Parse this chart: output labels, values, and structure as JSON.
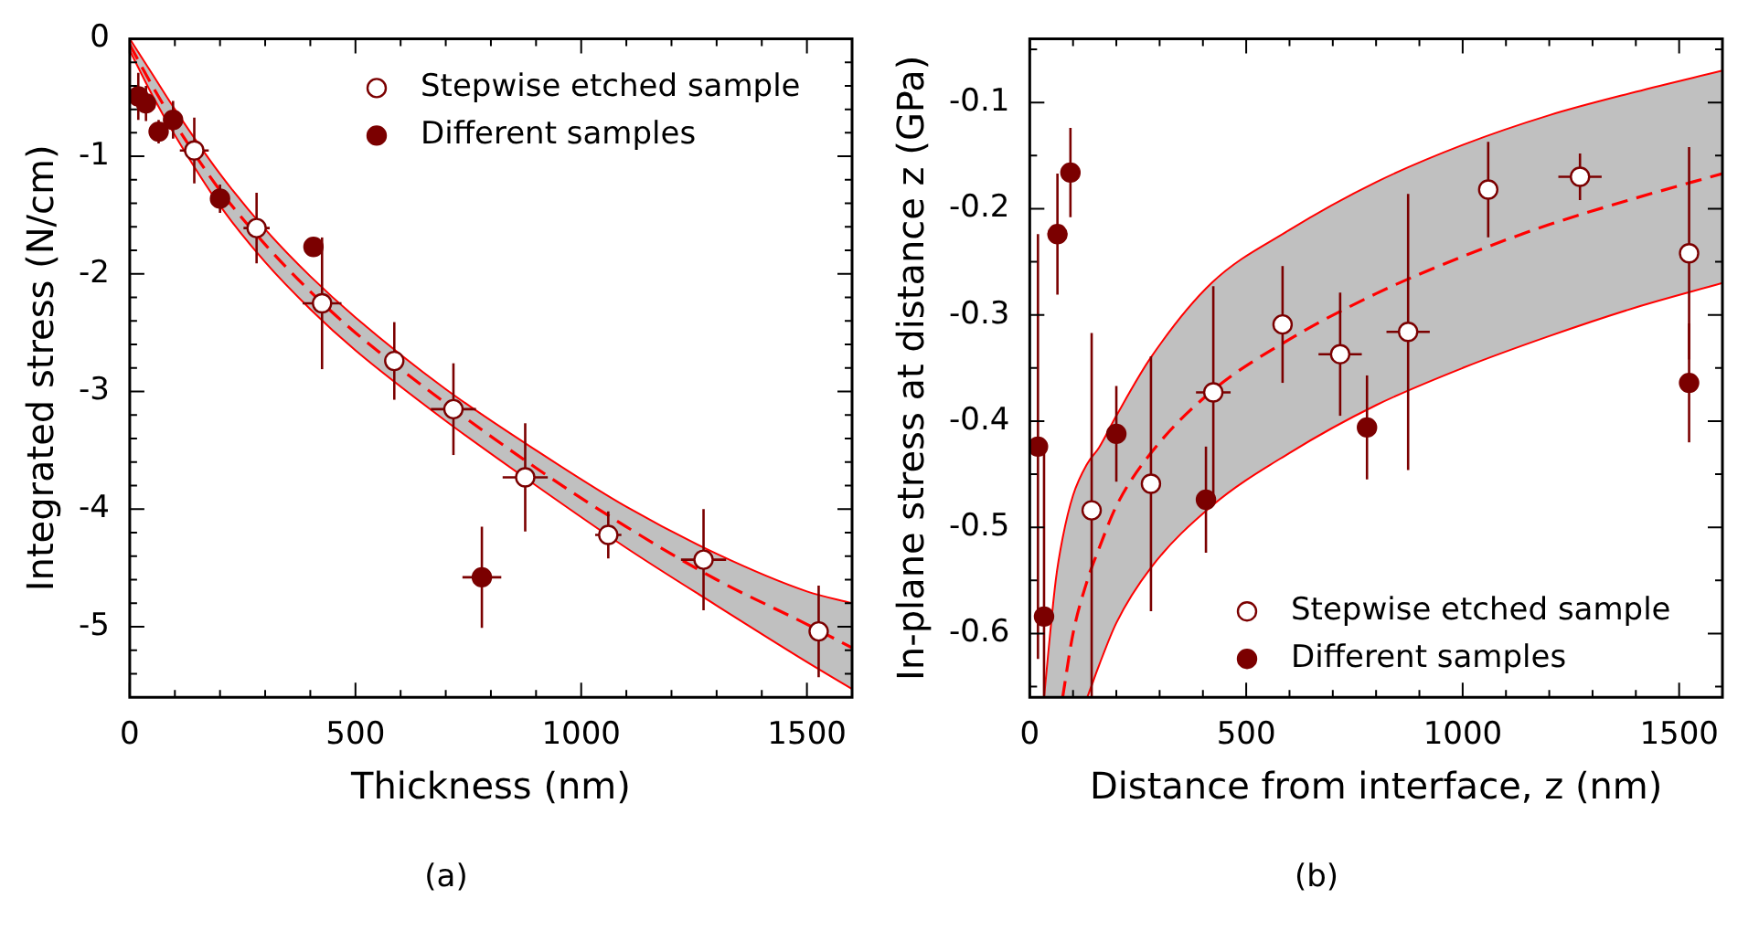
{
  "chart_data": [
    {
      "type": "scatter",
      "xlabel": "Thickness (nm)",
      "ylabel": "Integrated stress (N/cm)",
      "annotations": [
        "(a)"
      ],
      "legend": "top right",
      "marker": "circle",
      "xlim": [
        0,
        1600
      ],
      "xticks": [
        0,
        {
          "value": 100,
          "label": null
        },
        {
          "value": 200,
          "label": null
        },
        {
          "value": 300,
          "label": null
        },
        {
          "value": 400,
          "label": null
        },
        500,
        {
          "value": 600,
          "label": null
        },
        {
          "value": 700,
          "label": null
        },
        {
          "value": 800,
          "label": null
        },
        {
          "value": 900,
          "label": null
        },
        1000,
        {
          "value": 1100,
          "label": null
        },
        {
          "value": 1200,
          "label": null
        },
        {
          "value": 1300,
          "label": null
        },
        {
          "value": 1400,
          "label": null
        },
        1500
      ],
      "ylim": [
        -5.6,
        0
      ],
      "yticks": [
        0,
        {
          "value": -0.2,
          "label": null
        },
        {
          "value": -0.4,
          "label": null
        },
        {
          "value": -0.6,
          "label": null
        },
        {
          "value": -0.8,
          "label": null
        },
        -1,
        {
          "value": -1.2,
          "label": null
        },
        {
          "value": -1.4,
          "label": null
        },
        {
          "value": -1.6,
          "label": null
        },
        {
          "value": -1.8,
          "label": null
        },
        -2,
        {
          "value": -2.2,
          "label": null
        },
        {
          "value": -2.4,
          "label": null
        },
        {
          "value": -2.6,
          "label": null
        },
        {
          "value": -2.8,
          "label": null
        },
        -3,
        {
          "value": -3.2,
          "label": null
        },
        {
          "value": -3.4,
          "label": null
        },
        {
          "value": -3.6,
          "label": null
        },
        {
          "value": -3.8,
          "label": null
        },
        -4,
        {
          "value": -4.2,
          "label": null
        },
        {
          "value": -4.4,
          "label": null
        },
        {
          "value": -4.6,
          "label": null
        },
        {
          "value": -4.8,
          "label": null
        },
        -5,
        {
          "value": -5.2,
          "label": null
        },
        {
          "value": -5.4,
          "label": null
        }
      ],
      "series": [
        {
          "type": "line",
          "color": "#ff0000",
          "line_style": "dashed",
          "marker": "none",
          "x": [
            0,
            50,
            100,
            200,
            300,
            400,
            500,
            700,
            900,
            1100,
            1300,
            1500,
            1600
          ],
          "values": [
            -0.05,
            -0.4,
            -0.72,
            -1.29,
            -1.75,
            -2.15,
            -2.5,
            -3.1,
            -3.65,
            -4.15,
            -4.6,
            -4.98,
            -5.18
          ],
          "upper": [
            0,
            -0.3,
            -0.6,
            -1.15,
            -1.62,
            -2.02,
            -2.37,
            -2.98,
            -3.5,
            -3.98,
            -4.38,
            -4.7,
            -4.8
          ],
          "lower": [
            -0.1,
            -0.48,
            -0.82,
            -1.42,
            -1.9,
            -2.3,
            -2.65,
            -3.25,
            -3.8,
            -4.33,
            -4.82,
            -5.3,
            -5.53
          ]
        },
        {
          "type": "line",
          "color": "#ff0000",
          "line_style": "solid",
          "marker": "none",
          "x": [
            0,
            50,
            100,
            200,
            300,
            400,
            500,
            700,
            900,
            1100,
            1300,
            1500,
            1600
          ],
          "values": [
            0,
            -0.3,
            -0.6,
            -1.15,
            -1.62,
            -2.02,
            -2.37,
            -2.98,
            -3.5,
            -3.98,
            -4.38,
            -4.7,
            -4.8
          ]
        },
        {
          "type": "line",
          "color": "#ff0000",
          "line_style": "solid",
          "marker": "none",
          "x": [
            0,
            50,
            100,
            200,
            300,
            400,
            500,
            700,
            900,
            1100,
            1300,
            1500,
            1600
          ],
          "values": [
            -0.1,
            -0.48,
            -0.82,
            -1.42,
            -1.9,
            -2.3,
            -2.65,
            -3.25,
            -3.8,
            -4.33,
            -4.82,
            -5.3,
            -5.53
          ]
        },
        {
          "name": "Stepwise etched sample",
          "color": "#ffffff",
          "x": [
            143,
            281,
            426,
            586,
            717,
            876,
            1060,
            1271,
            1526
          ],
          "values": [
            -0.95,
            -1.61,
            -2.25,
            -2.74,
            -3.15,
            -3.73,
            -4.22,
            -4.43,
            -5.04
          ],
          "errors": [
            0.28,
            0.3,
            0.56,
            0.33,
            0.39,
            0.46,
            0.2,
            0.43,
            0.39
          ],
          "xerrors": [
            32,
            29,
            43,
            20,
            50,
            50,
            29,
            50,
            null
          ]
        },
        {
          "name": "Different samples",
          "color": "#7b0000",
          "x": [
            19,
            36,
            64,
            96,
            200,
            407,
            780
          ],
          "values": [
            -0.49,
            -0.55,
            -0.79,
            -0.69,
            -1.36,
            -1.77,
            -4.58
          ],
          "errors": [
            0.2,
            0.15,
            0.1,
            0.16,
            0.12,
            0.08,
            0.43
          ],
          "xerrors": [
            null,
            null,
            null,
            null,
            null,
            null,
            43
          ]
        }
      ]
    },
    {
      "type": "scatter",
      "xlabel": "Distance from interface, z (nm)",
      "ylabel": "In-plane stress at distance z (GPa)",
      "annotations": [
        "(b)"
      ],
      "legend": "bottom right",
      "marker": "circle",
      "xlim": [
        0,
        1600
      ],
      "xticks": [
        0,
        {
          "value": 100,
          "label": null
        },
        {
          "value": 200,
          "label": null
        },
        {
          "value": 300,
          "label": null
        },
        {
          "value": 400,
          "label": null
        },
        500,
        {
          "value": 600,
          "label": null
        },
        {
          "value": 700,
          "label": null
        },
        {
          "value": 800,
          "label": null
        },
        {
          "value": 900,
          "label": null
        },
        1000,
        {
          "value": 1100,
          "label": null
        },
        {
          "value": 1200,
          "label": null
        },
        {
          "value": 1300,
          "label": null
        },
        {
          "value": 1400,
          "label": null
        },
        1500
      ],
      "ylim": [
        -0.66,
        -0.04
      ],
      "yticks": [
        {
          "value": -0.05,
          "label": null
        },
        -0.1,
        {
          "value": -0.15,
          "label": null
        },
        -0.2,
        {
          "value": -0.25,
          "label": null
        },
        -0.3,
        {
          "value": -0.35,
          "label": null
        },
        -0.4,
        {
          "value": -0.45,
          "label": null
        },
        -0.5,
        {
          "value": -0.55,
          "label": null
        },
        -0.6,
        {
          "value": -0.65,
          "label": null
        }
      ],
      "series": [
        {
          "type": "line",
          "color": "#ff0000",
          "line_style": "dashed",
          "marker": "none",
          "x": [
            33,
            60,
            76,
            100,
            133,
            160,
            200,
            280,
            420,
            600,
            800,
            1000,
            1200,
            1400,
            1600
          ],
          "values": [
            null,
            null,
            -0.66,
            -0.6,
            -0.55,
            -0.52,
            -0.48,
            -0.43,
            -0.372,
            -0.323,
            -0.28,
            -0.245,
            -0.215,
            -0.19,
            -0.167
          ],
          "upper": [
            -0.66,
            -0.55,
            -0.51,
            -0.47,
            -0.44,
            -0.425,
            -0.395,
            -0.34,
            -0.27,
            -0.22,
            -0.175,
            -0.14,
            -0.112,
            -0.09,
            -0.07
          ],
          "lower": [
            -0.66,
            -0.66,
            -0.66,
            -0.66,
            -0.66,
            -0.63,
            -0.59,
            -0.538,
            -0.48,
            -0.43,
            -0.385,
            -0.35,
            -0.32,
            -0.293,
            -0.27
          ]
        },
        {
          "type": "line",
          "color": "#ff0000",
          "line_style": "solid",
          "marker": "none",
          "x": [
            33,
            60,
            76,
            100,
            133,
            160,
            200,
            280,
            420,
            600,
            800,
            1000,
            1200,
            1400,
            1600
          ],
          "values": [
            -0.66,
            -0.55,
            -0.51,
            -0.47,
            -0.44,
            -0.425,
            -0.395,
            -0.34,
            -0.27,
            -0.22,
            -0.175,
            -0.14,
            -0.112,
            -0.09,
            -0.07
          ]
        },
        {
          "type": "line",
          "color": "#ff0000",
          "line_style": "solid",
          "marker": "none",
          "x": [
            133,
            160,
            200,
            280,
            420,
            600,
            800,
            1000,
            1200,
            1400,
            1600
          ],
          "values": [
            -0.66,
            -0.63,
            -0.59,
            -0.538,
            -0.48,
            -0.43,
            -0.385,
            -0.35,
            -0.32,
            -0.293,
            -0.27
          ]
        },
        {
          "name": "Stepwise etched sample",
          "color": "#ffffff",
          "x": [
            143,
            280,
            424,
            584,
            717,
            874,
            1059,
            1271,
            1523
          ],
          "values": [
            -0.484,
            -0.459,
            -0.373,
            -0.309,
            -0.337,
            -0.316,
            -0.182,
            -0.17,
            -0.242
          ],
          "errors": [
            [
              -0.66,
              -0.317
            ],
            0.12,
            0.1,
            0.055,
            0.058,
            0.13,
            0.045,
            0.022,
            0.1
          ],
          "xerrors": [
            20,
            null,
            40,
            null,
            50,
            50,
            20,
            50,
            null
          ]
        },
        {
          "name": "Different samples",
          "color": "#7b0000",
          "x": [
            19,
            33,
            64,
            94,
            200,
            407,
            779,
            1523
          ],
          "values": [
            -0.424,
            -0.584,
            -0.224,
            -0.166,
            -0.412,
            -0.474,
            -0.406,
            -0.364
          ],
          "errors": [
            0.2,
            [
              -0.66,
              -0.425
            ],
            0.057,
            0.042,
            0.045,
            0.05,
            0.049,
            0.056
          ]
        }
      ]
    }
  ]
}
